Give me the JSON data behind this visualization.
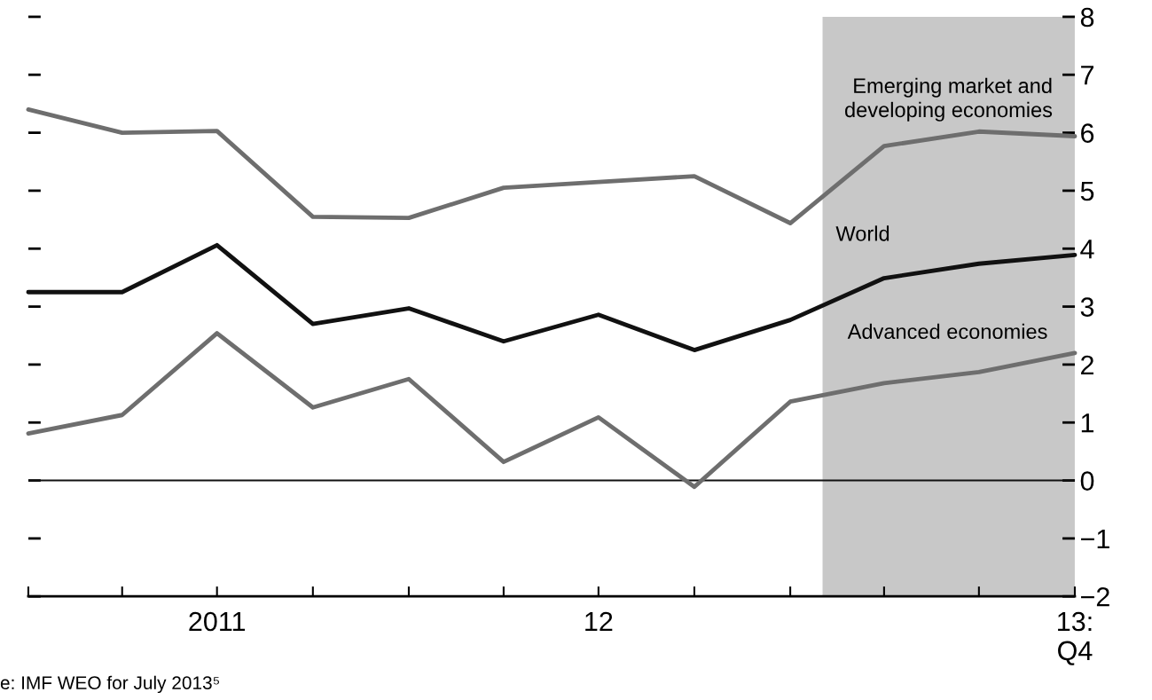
{
  "chart_data": {
    "type": "line",
    "x": [
      "2011-01",
      "2011-04",
      "2011-07",
      "2011-10",
      "2012-01",
      "2012-04",
      "2012-07",
      "2012-10",
      "2013-01",
      "2013-04",
      "2013-07",
      "2013-10"
    ],
    "series": [
      {
        "name": "Emerging market and\ndeveloping economies",
        "color": "#6e6e6e",
        "values": [
          6.4,
          6.0,
          6.03,
          4.55,
          4.53,
          5.05,
          5.15,
          5.25,
          4.44,
          5.77,
          6.02,
          5.94
        ]
      },
      {
        "name": "World",
        "color": "#111111",
        "values": [
          3.25,
          3.25,
          4.06,
          2.7,
          2.97,
          2.4,
          2.86,
          2.25,
          2.77,
          3.49,
          3.74,
          3.89
        ]
      },
      {
        "name": "Advanced economies",
        "color": "#6e6e6e",
        "values": [
          0.81,
          1.13,
          2.54,
          1.26,
          1.75,
          0.32,
          1.09,
          -0.11,
          1.36,
          1.68,
          1.87,
          2.2
        ]
      }
    ],
    "xlim": [
      "2011-01",
      "2013-10"
    ],
    "xticks": [
      {
        "value": "2011-01",
        "label": null
      },
      {
        "value": "2011-04",
        "label": null
      },
      {
        "value": "2011-07",
        "label": "2011"
      },
      {
        "value": "2011-10",
        "label": null
      },
      {
        "value": "2012-01",
        "label": null
      },
      {
        "value": "2012-04",
        "label": null
      },
      {
        "value": "2012-07",
        "label": "12"
      },
      {
        "value": "2012-10",
        "label": null
      },
      {
        "value": "2013-01",
        "label": null
      },
      {
        "value": "2013-04",
        "label": null
      },
      {
        "value": "2013-07",
        "label": null
      },
      {
        "value": "2013-10",
        "label": "13:\nQ4"
      }
    ],
    "ylim": [
      -2,
      8
    ],
    "yticks": [
      {
        "value": -2,
        "label": "−2"
      },
      {
        "value": -1,
        "label": "−1"
      },
      0,
      1,
      2,
      3,
      4,
      5,
      6,
      7,
      8
    ],
    "ref_lines": [
      {
        "axis": "y",
        "value": 0,
        "color": "#111111"
      }
    ],
    "bands": [
      {
        "axis": "x",
        "from": "2013-02",
        "to": "2013-10",
        "color": "#c8c8c8"
      }
    ],
    "annotations": [
      "e: IMF WEO for July 2013⁵"
    ],
    "grid": false,
    "legend": false,
    "marker": "none",
    "line_style": "solid"
  }
}
